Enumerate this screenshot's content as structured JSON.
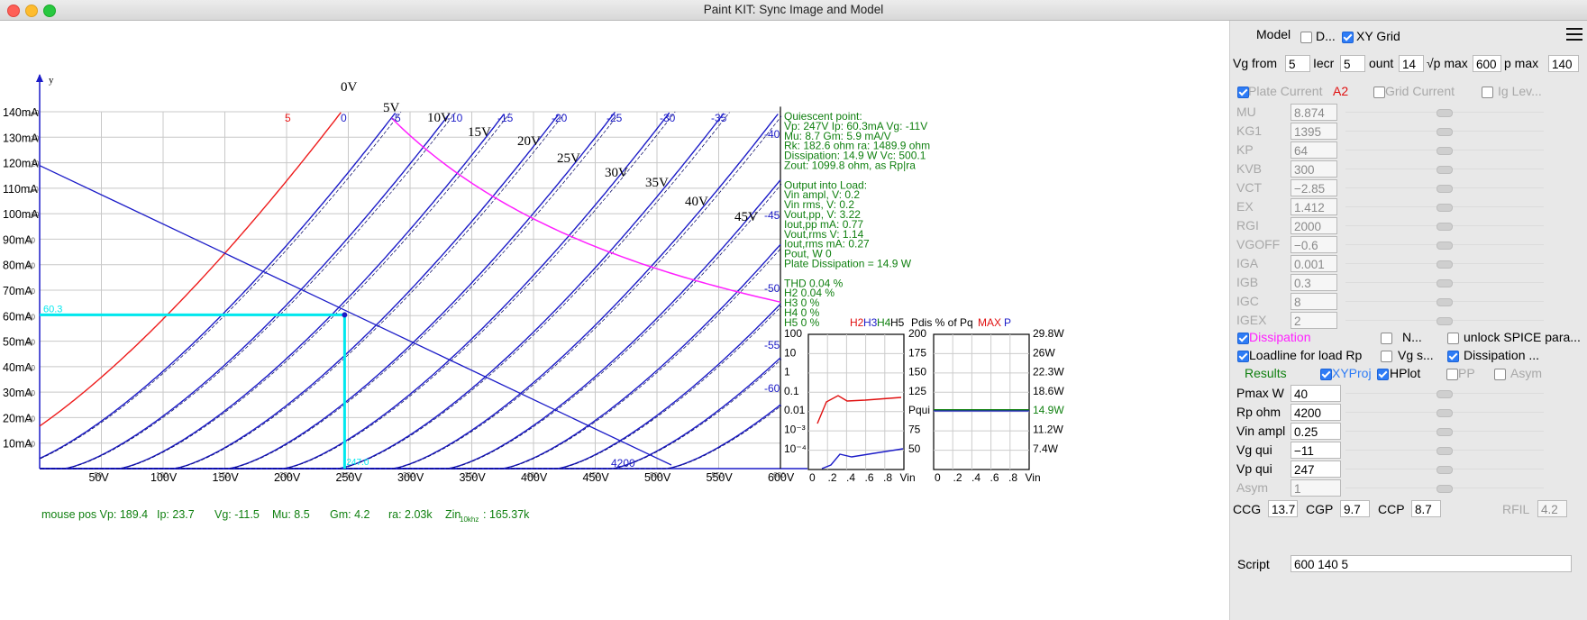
{
  "window": {
    "title": "Paint KIT: Sync Image and Model"
  },
  "plot": {
    "y_axis_label": "y",
    "y_ticks": [
      "140mA",
      "130mA",
      "120mA",
      "110mA",
      "100mA",
      "90mA",
      "80mA",
      "70mA",
      "60mA",
      "50mA",
      "40mA",
      "30mA",
      "20mA",
      "10mA"
    ],
    "x_ticks": [
      "50V",
      "100V",
      "150V",
      "200V",
      "250V",
      "300V",
      "350V",
      "400V",
      "450V",
      "500V",
      "550V",
      "600V"
    ],
    "x_axis_ticks_tiny": [
      "50",
      "100",
      "150",
      "200",
      "250",
      "300",
      "350",
      "400",
      "450",
      "500",
      "550",
      "600"
    ],
    "grid_ticks_small": [
      "140",
      "130",
      "120",
      "110",
      "100",
      "90",
      "80",
      "70",
      "60",
      "50",
      "40",
      "30",
      "20",
      "10"
    ],
    "top_grid_labels": [
      "5",
      "0",
      "-5",
      "-10",
      "-15",
      "-20",
      "-25",
      "-30",
      "-35"
    ],
    "right_grid_labels": [
      "-40",
      "-45",
      "-50",
      "-55",
      "-60"
    ],
    "image_curve_labels": [
      "0V",
      "5V",
      "10V",
      "15V",
      "20V",
      "25V",
      "30V",
      "35V",
      "40V",
      "45V"
    ],
    "loadline_label": "4200",
    "cursor_label": "60.3",
    "cursor_label_x": "247.0",
    "mouse_line": {
      "vp": "mouse pos Vp: 189.4",
      "ip": "Ip: 23.7",
      "vg": "Vg: -11.5",
      "mu": "Mu: 8.5",
      "gm": "Gm: 4.2",
      "ra": "ra: 2.03k",
      "zin_label": "Zin",
      "zin_sub": "10khz",
      "zin_val": ": 165.37k"
    },
    "info_lines": [
      "Quiescent point:",
      "Vp: 247V  Ip: 60.3mA  Vg: -11V",
      "Mu: 8.7 Gm: 5.9 mA/V",
      "Rk: 182.6 ohm ra: 1489.9 ohm",
      "Dissipation: 14.9 W Vc: 500.1",
      "Zout: 1099.8 ohm, as Rp|ra",
      "",
      "Output into Load:",
      "Vin ampl, V: 0.2",
      "Vin rms,  V: 0.2",
      "Vout,pp,   V: 3.22",
      "Iout,pp   mA: 0.77",
      "Vout,rms   V: 1.14",
      "Iout,rms  mA: 0.27",
      "Pout, W      0",
      "Plate Dissipation = 14.9 W",
      "",
      "THD 0.04 %",
      "  H2 0.04 %",
      "  H3 0 %",
      "  H4 0 %",
      "  H5 0 %"
    ],
    "harm_header": {
      "h2": "H2",
      "h3": "H3",
      "h4": "H4",
      "h5": "H5",
      "pdis": "Pdis % of Pq",
      "max": "MAX",
      "p": "P"
    },
    "harm_y_ticks": [
      "100",
      "10",
      "1",
      "0.1",
      "0.01",
      "10⁻³",
      "10⁻⁴"
    ],
    "harm_x_ticks": [
      "0",
      ".2",
      ".4",
      ".6",
      ".8",
      "Vin"
    ],
    "pdis_y_ticks": [
      "200",
      "175",
      "150",
      "125",
      "Pqui",
      "75",
      "50"
    ],
    "pdis_right_ticks": [
      "29.8W",
      "26W",
      "22.3W",
      "18.6W",
      "14.9W",
      "11.2W",
      "7.4W"
    ],
    "pdis_x_ticks": [
      "0",
      ".2",
      ".4",
      ".6",
      ".8",
      "Vin"
    ]
  },
  "chart_data": {
    "type": "line",
    "title": "",
    "xlabel": "",
    "ylabel": "y",
    "xlim": [
      0,
      600
    ],
    "ylim": [
      0,
      140
    ],
    "x_unit": "V",
    "y_unit": "mA",
    "grid": true,
    "model_curves_vg": [
      5,
      0,
      -5,
      -10,
      -15,
      -20,
      -25,
      -30,
      -35,
      -40,
      -45,
      -50,
      -55,
      -60
    ],
    "mu": 8.874,
    "kg1": 1395,
    "ex": 1.412,
    "loadline": {
      "rp_ohm": 4200,
      "points": [
        [
          0,
          118.9
        ],
        [
          500,
          0
        ]
      ]
    },
    "quiescent": {
      "vp": 247,
      "ip": 60.3
    },
    "dissipation_w": 14.9
  },
  "panel": {
    "model_label": "Model",
    "d_label": "D...",
    "xy_grid_label": "XY Grid",
    "vg_from_label": "Vg from",
    "vg_from": "5",
    "incr_label": "Iecr",
    "incr": "5",
    "count_label": "ount",
    "count": "14",
    "vp_max_label": "√p max",
    "vp_max": "600",
    "p_max_label": "p max",
    "p_max": "140",
    "plate_current_label": "Plate Current",
    "a2_label": "A2",
    "grid_current_label": "Grid Current",
    "ig_lev_label": "Ig Lev...",
    "params": [
      {
        "name": "MU",
        "value": "8.874"
      },
      {
        "name": "KG1",
        "value": "1395"
      },
      {
        "name": "KP",
        "value": "64"
      },
      {
        "name": "KVB",
        "value": "300"
      },
      {
        "name": "VCT",
        "value": "−2.85"
      },
      {
        "name": "EX",
        "value": "1.412"
      },
      {
        "name": "RGI",
        "value": "2000"
      },
      {
        "name": "VGOFF",
        "value": "−0.6"
      },
      {
        "name": "IGA",
        "value": "0.001"
      },
      {
        "name": "IGB",
        "value": "0.3"
      },
      {
        "name": "IGC",
        "value": "8"
      },
      {
        "name": "IGEX",
        "value": "2"
      }
    ],
    "dissipation_label": "Dissipation",
    "n_label": "N...",
    "unlock_label": "unlock SPICE para...",
    "loadline_label": "Loadline for load Rp",
    "vg_s_label": "Vg s...",
    "dissipation2_label": "Dissipation ...",
    "results_label": "Results",
    "xyproj_label": "XYProj",
    "hplot_label": "HPlot",
    "pp_label": "PP",
    "asym_label": "Asym",
    "results": [
      {
        "name": "Pmax W",
        "value": "40"
      },
      {
        "name": "Rp ohm",
        "value": "4200"
      },
      {
        "name": "Vin ampl",
        "value": "0.25"
      },
      {
        "name": "Vg qui",
        "value": "−11"
      },
      {
        "name": "Vp qui",
        "value": "247"
      },
      {
        "name": "Asym",
        "value": "1"
      }
    ],
    "ccg_label": "CCG",
    "ccg": "13.7",
    "cgp_label": "CGP",
    "cgp": "9.7",
    "ccp_label": "CCP",
    "ccp": "8.7",
    "rfil_label": "RFIL",
    "rfil": "4.2",
    "script_label": "Script",
    "script_value": "600 140 5"
  },
  "colors": {
    "model_curve": "#1c1cc8",
    "image_curve": "#000000",
    "dissipation": "#ff20ff",
    "cursor": "#00e8ee",
    "info_text": "#108010",
    "grid": "#c8c8c8",
    "red_curve": "#ee1c1c"
  }
}
